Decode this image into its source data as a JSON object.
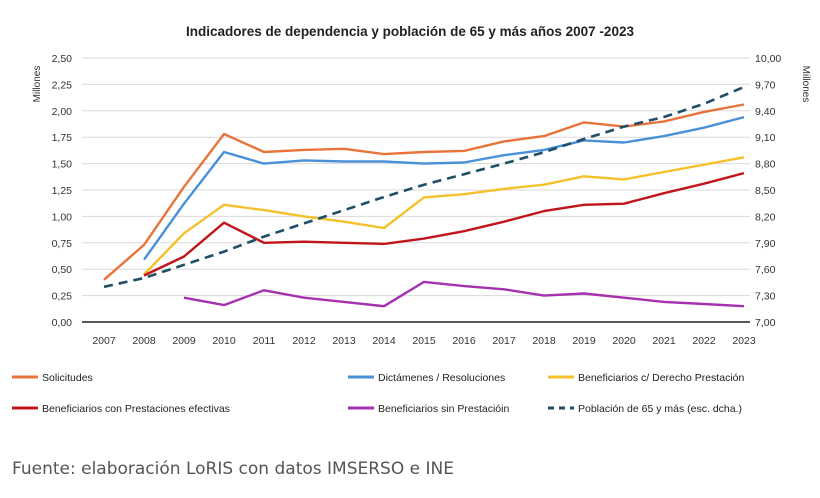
{
  "chart_data": {
    "type": "line",
    "title": "Indicadores de dependencia y población de 65 y más años 2007 -2023",
    "ylabel": "Millones",
    "y2label": "Millones",
    "ylim": [
      0,
      2.5
    ],
    "y2lim": [
      7.0,
      10.0
    ],
    "yticks": [
      "0,00",
      "0,25",
      "0,50",
      "0,75",
      "1,00",
      "1,25",
      "1,50",
      "1,75",
      "2,00",
      "2,25",
      "2,50"
    ],
    "y2ticks": [
      "7,00",
      "7,30",
      "7,60",
      "7,90",
      "8,20",
      "8,50",
      "8,80",
      "9,10",
      "9,40",
      "9,70",
      "10,00"
    ],
    "categories": [
      "2007",
      "2008",
      "2009",
      "2010",
      "2011",
      "2012",
      "2013",
      "2014",
      "2015",
      "2016",
      "2017",
      "2018",
      "2019",
      "2020",
      "2021",
      "2022",
      "2023"
    ],
    "grid": true,
    "legend_position": "bottom",
    "series": [
      {
        "name": "Solicitudes",
        "color": "#e8743b",
        "axis": "left",
        "values": [
          0.4,
          0.73,
          1.28,
          1.78,
          1.61,
          1.63,
          1.64,
          1.59,
          1.61,
          1.62,
          1.71,
          1.76,
          1.89,
          1.85,
          1.9,
          1.99,
          2.06
        ]
      },
      {
        "name": "Dictámenes / Resoluciones",
        "color": "#4a90d9",
        "axis": "left",
        "values": [
          null,
          0.59,
          1.12,
          1.61,
          1.5,
          1.53,
          1.52,
          1.52,
          1.5,
          1.51,
          1.58,
          1.63,
          1.72,
          1.7,
          1.76,
          1.84,
          1.94
        ]
      },
      {
        "name": "Beneficiarios c/ Derecho Prestación",
        "color": "#f5c02a",
        "axis": "left",
        "values": [
          null,
          0.45,
          0.84,
          1.11,
          1.06,
          1.0,
          0.95,
          0.89,
          1.18,
          1.21,
          1.26,
          1.3,
          1.38,
          1.35,
          1.42,
          1.49,
          1.56
        ]
      },
      {
        "name": "Beneficiarios con Prestaciones efectivas",
        "color": "#c0151b",
        "axis": "left",
        "values": [
          null,
          0.44,
          0.62,
          0.94,
          0.75,
          0.76,
          0.75,
          0.74,
          0.79,
          0.86,
          0.95,
          1.05,
          1.11,
          1.12,
          1.22,
          1.31,
          1.41
        ]
      },
      {
        "name": "Beneficiarios sin Prestacióin",
        "color": "#a530b0",
        "axis": "left",
        "values": [
          null,
          null,
          0.23,
          0.16,
          0.3,
          0.23,
          0.19,
          0.15,
          0.38,
          0.34,
          0.31,
          0.25,
          0.27,
          0.23,
          0.19,
          0.17,
          0.15
        ]
      },
      {
        "name": "Población de 65 y más (esc. dcha.)",
        "color": "#1f4e66",
        "axis": "right",
        "dashed": true,
        "values": [
          7.4,
          7.5,
          7.65,
          7.8,
          7.97,
          8.12,
          8.27,
          8.42,
          8.56,
          8.68,
          8.8,
          8.93,
          9.08,
          9.22,
          9.33,
          9.48,
          9.67
        ]
      }
    ]
  },
  "source": "Fuente: elaboración LoRIS con datos IMSERSO e INE"
}
